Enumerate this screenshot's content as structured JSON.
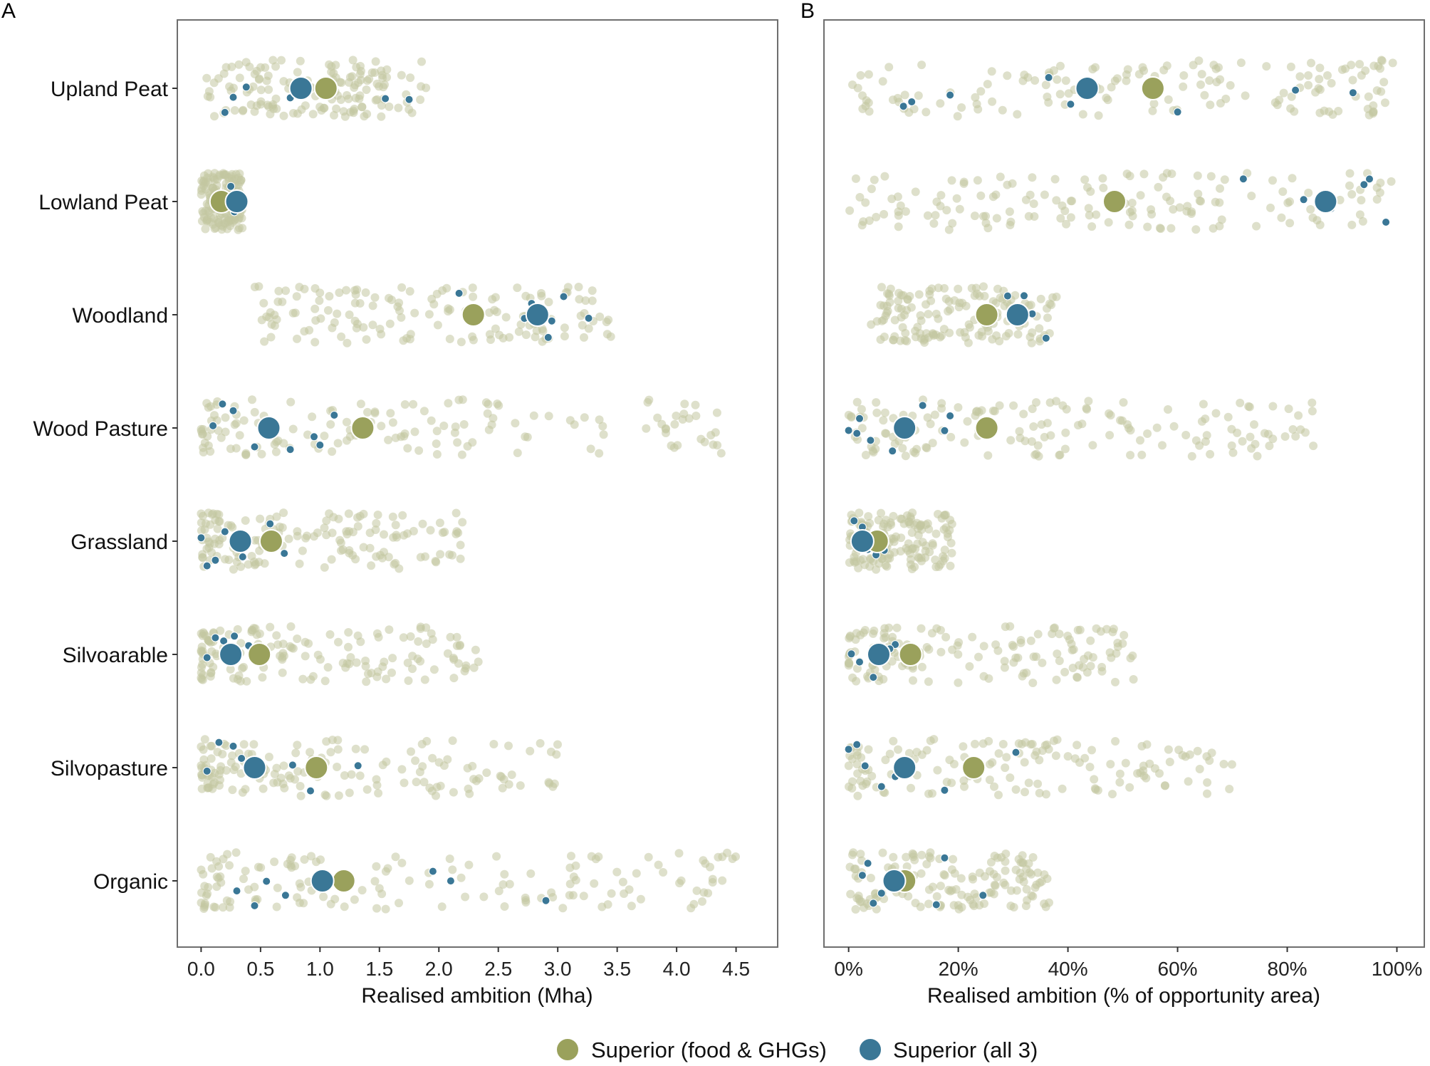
{
  "figure": {
    "legend": [
      {
        "label": "Superior (food & GHGs)",
        "color": "#9aa15c"
      },
      {
        "label": "Superior (all 3)",
        "color": "#3a7796"
      }
    ],
    "background_point_color": "#c3c6a1"
  },
  "chart_data": [
    {
      "type": "scatter",
      "panel": "A",
      "xlabel": "Realised ambition (Mha)",
      "xlim": [
        -0.2,
        4.85
      ],
      "x_ticks": [
        0,
        0.5,
        1.0,
        1.5,
        2.0,
        2.5,
        3.0,
        3.5,
        4.0,
        4.5
      ],
      "x_tick_labels": [
        "0.0",
        "0.5",
        "1.0",
        "1.5",
        "2.0",
        "2.5",
        "3.0",
        "3.5",
        "4.0",
        "4.5"
      ],
      "categories": [
        "Upland Peat",
        "Lowland Peat",
        "Woodland",
        "Wood Pasture",
        "Grassland",
        "Silvoarable",
        "Silvopasture",
        "Organic"
      ],
      "series": [
        {
          "name": "Superior (food & GHGs)",
          "values": [
            1.05,
            0.17,
            2.29,
            1.36,
            0.59,
            0.49,
            0.97,
            1.2
          ]
        },
        {
          "name": "Superior (all 3)",
          "values": [
            0.84,
            0.3,
            2.83,
            0.57,
            0.33,
            0.25,
            0.45,
            1.02
          ]
        }
      ],
      "background_spread": {
        "Upland Peat": [
          0.03,
          1.9
        ],
        "Lowland Peat": [
          0.0,
          0.35
        ],
        "Woodland": [
          0.45,
          3.55
        ],
        "Wood Pasture": [
          0.0,
          4.6
        ],
        "Grassland": [
          0.0,
          2.2
        ],
        "Silvoarable": [
          0.0,
          2.35
        ],
        "Silvopasture": [
          0.0,
          3.05
        ],
        "Organic": [
          0.0,
          4.5
        ]
      },
      "highlight_small_points": {
        "Upland Peat": [
          0.2,
          0.27,
          0.38,
          0.75,
          0.82,
          1.12,
          1.55,
          1.75
        ],
        "Lowland Peat": [
          0.25,
          0.3,
          0.28
        ],
        "Woodland": [
          2.17,
          2.72,
          2.78,
          2.92,
          3.05,
          3.26,
          2.95
        ],
        "Wood Pasture": [
          0.1,
          0.18,
          0.45,
          0.75,
          0.95,
          1.12,
          1.0,
          0.27
        ],
        "Grassland": [
          0.05,
          0.12,
          0.2,
          0.35,
          0.58,
          0.7,
          0.0
        ],
        "Silvoarable": [
          0.05,
          0.12,
          0.19,
          0.28,
          0.4
        ],
        "Silvopasture": [
          0.05,
          0.15,
          0.27,
          0.34,
          0.77,
          0.92,
          1.32
        ],
        "Organic": [
          0.3,
          0.45,
          0.55,
          0.71,
          1.95,
          2.1,
          2.9
        ]
      }
    },
    {
      "type": "scatter",
      "panel": "B",
      "xlabel": "Realised ambition (% of opportunity area)",
      "xlim": [
        -4.5,
        105
      ],
      "x_ticks": [
        0,
        20,
        40,
        60,
        80,
        100
      ],
      "x_tick_labels": [
        "0%",
        "20%",
        "40%",
        "60%",
        "80%",
        "100%"
      ],
      "categories": [
        "Upland Peat",
        "Lowland Peat",
        "Woodland",
        "Wood Pasture",
        "Grassland",
        "Silvoarable",
        "Silvopasture",
        "Organic"
      ],
      "series": [
        {
          "name": "Superior (food & GHGs)",
          "values": [
            55.5,
            48.5,
            25.2,
            25.2,
            5.2,
            11.3,
            22.8,
            10.2
          ]
        },
        {
          "name": "Superior (all 3)",
          "values": [
            43.5,
            87,
            30.8,
            10.2,
            2.5,
            5.5,
            10.2,
            8.3
          ]
        }
      ],
      "background_spread": {
        "Upland Peat": [
          0,
          100
        ],
        "Lowland Peat": [
          0,
          99
        ],
        "Woodland": [
          4,
          38
        ],
        "Wood Pasture": [
          0,
          85
        ],
        "Grassland": [
          0,
          19
        ],
        "Silvoarable": [
          0,
          52
        ],
        "Silvopasture": [
          0,
          71
        ],
        "Organic": [
          0,
          37
        ]
      },
      "highlight_small_points": {
        "Upland Peat": [
          10,
          11.5,
          18.5,
          40.5,
          36.5,
          60,
          81.5,
          92
        ],
        "Lowland Peat": [
          83,
          88,
          94,
          95,
          98,
          72
        ],
        "Woodland": [
          29,
          32,
          33.5,
          36,
          30,
          29.5
        ],
        "Wood Pasture": [
          0,
          2,
          4,
          8,
          13.5,
          17.5,
          18.5,
          1.5
        ],
        "Grassland": [
          1,
          2.5,
          4.5,
          6.5,
          5,
          3.5
        ],
        "Silvoarable": [
          0.5,
          2,
          4.5,
          8.5,
          7.5
        ],
        "Silvopasture": [
          0,
          1.5,
          3,
          6,
          8.5,
          17.5,
          30.5
        ],
        "Organic": [
          2.5,
          3.5,
          4.5,
          6,
          17.5,
          24.5,
          16
        ]
      }
    }
  ]
}
